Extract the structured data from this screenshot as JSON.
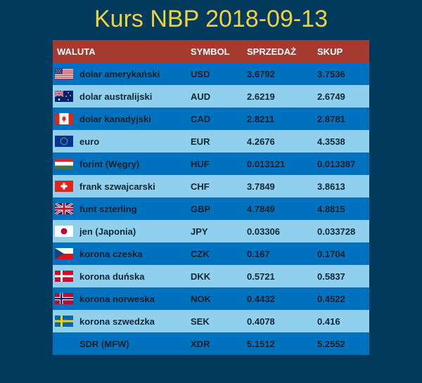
{
  "title": "Kurs NBP 2018-09-13",
  "headers": {
    "currency": "WALUTA",
    "symbol": "SYMBOL",
    "sell": "SPRZEDAŻ",
    "buy": "SKUP"
  },
  "rows": [
    {
      "name": "dolar amerykański",
      "symbol": "USD",
      "sell": "3.6792",
      "buy": "3.7536",
      "flag": "us-flag-icon"
    },
    {
      "name": "dolar australijski",
      "symbol": "AUD",
      "sell": "2.6219",
      "buy": "2.6749",
      "flag": "au-flag-icon"
    },
    {
      "name": "dolar kanadyjski",
      "symbol": "CAD",
      "sell": "2.8211",
      "buy": "2.8781",
      "flag": "ca-flag-icon"
    },
    {
      "name": "euro",
      "symbol": "EUR",
      "sell": "4.2676",
      "buy": "4.3538",
      "flag": "eu-flag-icon"
    },
    {
      "name": "forint (Węgry)",
      "symbol": "HUF",
      "sell": "0.013121",
      "buy": "0.013387",
      "flag": "hu-flag-icon"
    },
    {
      "name": "frank szwajcarski",
      "symbol": "CHF",
      "sell": "3.7849",
      "buy": "3.8613",
      "flag": "ch-flag-icon"
    },
    {
      "name": "funt szterling",
      "symbol": "GBP",
      "sell": "4.7849",
      "buy": "4.8815",
      "flag": "gb-flag-icon"
    },
    {
      "name": "jen (Japonia)",
      "symbol": "JPY",
      "sell": "0.03306",
      "buy": "0.033728",
      "flag": "jp-flag-icon"
    },
    {
      "name": "korona czeska",
      "symbol": "CZK",
      "sell": "0.167",
      "buy": "0.1704",
      "flag": "cz-flag-icon"
    },
    {
      "name": "korona duńska",
      "symbol": "DKK",
      "sell": "0.5721",
      "buy": "0.5837",
      "flag": "dk-flag-icon"
    },
    {
      "name": "korona norweska",
      "symbol": "NOK",
      "sell": "0.4432",
      "buy": "0.4522",
      "flag": "no-flag-icon"
    },
    {
      "name": "korona szwedzka",
      "symbol": "SEK",
      "sell": "0.4078",
      "buy": "0.416",
      "flag": "se-flag-icon"
    },
    {
      "name": "SDR (MFW)",
      "symbol": "XDR",
      "sell": "5.1512",
      "buy": "5.2552",
      "flag": ""
    }
  ],
  "colors": {
    "background": "#003a5d",
    "title": "#f2d23a",
    "header": "#a63a2f",
    "row_dark": "#0071bc",
    "row_light": "#8ed0ee"
  }
}
